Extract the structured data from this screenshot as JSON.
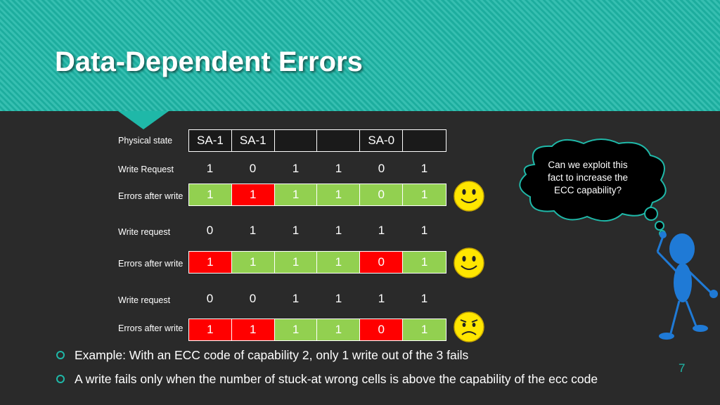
{
  "slide": {
    "title": "Data-Dependent Errors",
    "page_number": "7"
  },
  "table": {
    "physical_state_label": "Physical state",
    "physical_state": [
      "SA-1",
      "SA-1",
      "",
      "",
      "SA-0",
      ""
    ],
    "rows": [
      {
        "request_label": "Write Request",
        "request": [
          "1",
          "0",
          "1",
          "1",
          "0",
          "1"
        ],
        "errors_label": "Errors after write",
        "errors": [
          "1",
          "1",
          "1",
          "1",
          "0",
          "1"
        ],
        "error_colors": [
          "green",
          "red",
          "green",
          "green",
          "green",
          "green"
        ],
        "mood": "happy"
      },
      {
        "request_label": "Write request",
        "request": [
          "0",
          "1",
          "1",
          "1",
          "1",
          "1"
        ],
        "errors_label": "Errors after write",
        "errors": [
          "1",
          "1",
          "1",
          "1",
          "0",
          "1"
        ],
        "error_colors": [
          "red",
          "green",
          "green",
          "green",
          "red",
          "green"
        ],
        "mood": "happy"
      },
      {
        "request_label": "Write request",
        "request": [
          "0",
          "0",
          "1",
          "1",
          "1",
          "1"
        ],
        "errors_label": "Errors after write",
        "errors": [
          "1",
          "1",
          "1",
          "1",
          "0",
          "1"
        ],
        "error_colors": [
          "red",
          "red",
          "green",
          "green",
          "red",
          "green"
        ],
        "mood": "sad"
      }
    ]
  },
  "thought_bubble": {
    "text_line1": "Can we exploit this",
    "text_line2": "fact to increase the",
    "text_line3": "ECC capability?"
  },
  "bullets": [
    "Example: With an ECC code of capability 2, only 1 write out of the 3 fails",
    "A write fails only when the number of stuck-at wrong cells is above the capability of the ecc code"
  ],
  "colors": {
    "accent": "#1fb8a8",
    "ok_cell": "#92d050",
    "error_cell": "#ff0000",
    "background": "#2a2a2a",
    "smiley": "#ffe600",
    "figure": "#1f7ad6"
  }
}
